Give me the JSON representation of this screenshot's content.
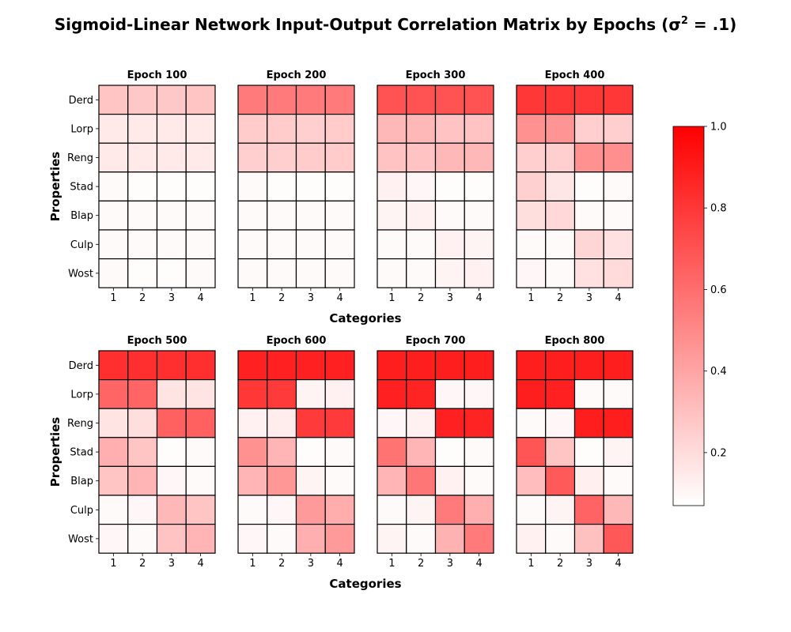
{
  "chart_data": {
    "type": "heatmap",
    "title": "Sigmoid-Linear Network Input-Output Correlation Matrix by Epochs (σ² = .1)",
    "title_main": "Sigmoid-Linear Network Input-Output Correlation Matrix by Epochs (σ",
    "title_sup": "2",
    "title_end": " = .1)",
    "xlabel": "Categories",
    "ylabel": "Properties",
    "x_categories": [
      "1",
      "2",
      "3",
      "4"
    ],
    "y_categories": [
      "Derd",
      "Lorp",
      "Reng",
      "Stad",
      "Blap",
      "Culp",
      "Wost"
    ],
    "colorbar": {
      "min": 0.07,
      "max": 1.0,
      "ticks": [
        0.2,
        0.4,
        0.6,
        0.8,
        1.0
      ],
      "tick_labels": [
        "0.2",
        "0.4",
        "0.6",
        "0.8",
        "1.0"
      ],
      "color_low": "#ffffff",
      "color_high": "#ff0000"
    },
    "panels": [
      {
        "title": "Epoch 100",
        "values": [
          [
            0.28,
            0.27,
            0.27,
            0.28
          ],
          [
            0.15,
            0.15,
            0.15,
            0.15
          ],
          [
            0.15,
            0.15,
            0.15,
            0.15
          ],
          [
            0.09,
            0.08,
            0.08,
            0.08
          ],
          [
            0.09,
            0.09,
            0.09,
            0.09
          ],
          [
            0.09,
            0.09,
            0.09,
            0.09
          ],
          [
            0.09,
            0.08,
            0.08,
            0.09
          ]
        ]
      },
      {
        "title": "Epoch 200",
        "values": [
          [
            0.55,
            0.55,
            0.55,
            0.55
          ],
          [
            0.26,
            0.26,
            0.25,
            0.26
          ],
          [
            0.25,
            0.25,
            0.26,
            0.26
          ],
          [
            0.09,
            0.08,
            0.08,
            0.08
          ],
          [
            0.09,
            0.09,
            0.09,
            0.09
          ],
          [
            0.09,
            0.09,
            0.09,
            0.09
          ],
          [
            0.09,
            0.09,
            0.09,
            0.09
          ]
        ]
      },
      {
        "title": "Epoch 300",
        "values": [
          [
            0.7,
            0.7,
            0.7,
            0.7
          ],
          [
            0.33,
            0.33,
            0.29,
            0.29
          ],
          [
            0.29,
            0.29,
            0.33,
            0.33
          ],
          [
            0.12,
            0.1,
            0.08,
            0.08
          ],
          [
            0.11,
            0.12,
            0.09,
            0.09
          ],
          [
            0.09,
            0.09,
            0.12,
            0.11
          ],
          [
            0.09,
            0.09,
            0.11,
            0.12
          ]
        ]
      },
      {
        "title": "Epoch 400",
        "values": [
          [
            0.8,
            0.8,
            0.8,
            0.8
          ],
          [
            0.47,
            0.46,
            0.25,
            0.25
          ],
          [
            0.25,
            0.25,
            0.47,
            0.48
          ],
          [
            0.24,
            0.16,
            0.08,
            0.09
          ],
          [
            0.19,
            0.21,
            0.09,
            0.09
          ],
          [
            0.09,
            0.09,
            0.22,
            0.18
          ],
          [
            0.1,
            0.09,
            0.18,
            0.2
          ]
        ]
      },
      {
        "title": "Epoch 500",
        "values": [
          [
            0.83,
            0.83,
            0.83,
            0.83
          ],
          [
            0.63,
            0.63,
            0.17,
            0.17
          ],
          [
            0.17,
            0.19,
            0.65,
            0.65
          ],
          [
            0.36,
            0.28,
            0.08,
            0.09
          ],
          [
            0.28,
            0.34,
            0.1,
            0.09
          ],
          [
            0.09,
            0.1,
            0.33,
            0.28
          ],
          [
            0.1,
            0.09,
            0.29,
            0.34
          ]
        ]
      },
      {
        "title": "Epoch 600",
        "values": [
          [
            0.88,
            0.88,
            0.88,
            0.88
          ],
          [
            0.8,
            0.79,
            0.11,
            0.12
          ],
          [
            0.12,
            0.14,
            0.79,
            0.79
          ],
          [
            0.47,
            0.34,
            0.08,
            0.09
          ],
          [
            0.34,
            0.45,
            0.11,
            0.09
          ],
          [
            0.09,
            0.1,
            0.44,
            0.37
          ],
          [
            0.1,
            0.09,
            0.36,
            0.44
          ]
        ]
      },
      {
        "title": "Epoch 700",
        "values": [
          [
            0.89,
            0.89,
            0.89,
            0.89
          ],
          [
            0.88,
            0.87,
            0.1,
            0.1
          ],
          [
            0.1,
            0.12,
            0.88,
            0.87
          ],
          [
            0.58,
            0.34,
            0.08,
            0.09
          ],
          [
            0.34,
            0.57,
            0.12,
            0.09
          ],
          [
            0.09,
            0.11,
            0.55,
            0.36
          ],
          [
            0.11,
            0.09,
            0.35,
            0.55
          ]
        ]
      },
      {
        "title": "Epoch 800",
        "values": [
          [
            0.89,
            0.89,
            0.89,
            0.89
          ],
          [
            0.89,
            0.88,
            0.09,
            0.09
          ],
          [
            0.09,
            0.1,
            0.89,
            0.89
          ],
          [
            0.69,
            0.28,
            0.08,
            0.11
          ],
          [
            0.31,
            0.67,
            0.13,
            0.09
          ],
          [
            0.09,
            0.11,
            0.64,
            0.33
          ],
          [
            0.12,
            0.09,
            0.3,
            0.68
          ]
        ]
      }
    ]
  }
}
